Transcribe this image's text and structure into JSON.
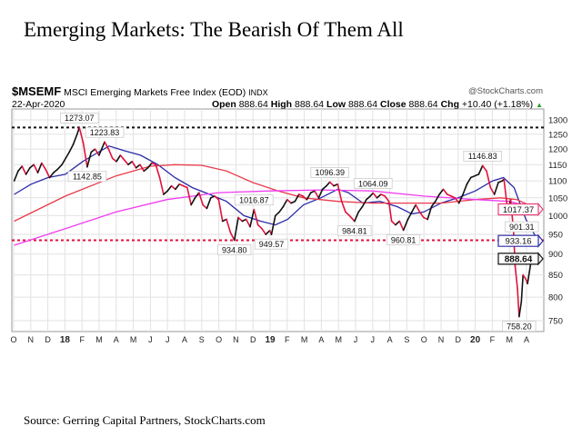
{
  "title": "Emerging Markets:  The Bearish Of Them All",
  "source": "Source: Gerring Capital Partners, StockCharts.com",
  "header": {
    "symbol": "$MSEMF",
    "name": "MSCI Emerging Markets Free Index (EOD)",
    "exchange": "INDX",
    "brand": "@StockCharts.com",
    "date": "22-Apr-2020",
    "open_label": "Open",
    "open": "888.64",
    "high_label": "High",
    "high": "888.64",
    "low_label": "Low",
    "low": "888.64",
    "close_label": "Close",
    "close": "888.64",
    "chg_label": "Chg",
    "chg": "+10.40 (+1.18%)",
    "up_arrow": "▲"
  },
  "chart_data": {
    "type": "line",
    "title": "$MSEMF MSCI Emerging Markets Free Index (EOD)",
    "yscale": "log",
    "ylim": [
      720,
      1320
    ],
    "yticks": [
      750,
      800,
      850,
      900,
      950,
      1000,
      1050,
      1100,
      1150,
      1200,
      1250,
      1300
    ],
    "xstart": "2017-10-01",
    "xend": "2020-04-22",
    "xtick_labels": [
      "O",
      "N",
      "D",
      "18",
      "F",
      "M",
      "A",
      "M",
      "J",
      "J",
      "A",
      "S",
      "O",
      "N",
      "D",
      "19",
      "F",
      "M",
      "A",
      "M",
      "J",
      "J",
      "A",
      "S",
      "O",
      "N",
      "D",
      "20",
      "F",
      "M",
      "A"
    ],
    "grid": true,
    "colors": {
      "up": "#111111",
      "down": "#e0123c",
      "ma_short": "#2a2aa8",
      "ma_mid": "#e83a4a",
      "ma_long": "#f03cf0"
    },
    "price": [
      [
        "2017-10-02",
        1100
      ],
      [
        "2017-10-09",
        1130
      ],
      [
        "2017-10-16",
        1145
      ],
      [
        "2017-10-23",
        1120
      ],
      [
        "2017-10-30",
        1140
      ],
      [
        "2017-11-06",
        1150
      ],
      [
        "2017-11-13",
        1125
      ],
      [
        "2017-11-20",
        1155
      ],
      [
        "2017-11-27",
        1135
      ],
      [
        "2017-12-04",
        1110
      ],
      [
        "2017-12-11",
        1125
      ],
      [
        "2017-12-18",
        1135
      ],
      [
        "2017-12-26",
        1150
      ],
      [
        "2018-01-08",
        1190
      ],
      [
        "2018-01-15",
        1215
      ],
      [
        "2018-01-22",
        1250
      ],
      [
        "2018-01-26",
        1273.07
      ],
      [
        "2018-02-02",
        1220
      ],
      [
        "2018-02-09",
        1142.85
      ],
      [
        "2018-02-16",
        1190
      ],
      [
        "2018-02-23",
        1200
      ],
      [
        "2018-03-02",
        1180
      ],
      [
        "2018-03-12",
        1223.83
      ],
      [
        "2018-03-19",
        1200
      ],
      [
        "2018-03-26",
        1170
      ],
      [
        "2018-04-02",
        1160
      ],
      [
        "2018-04-09",
        1180
      ],
      [
        "2018-04-16",
        1165
      ],
      [
        "2018-04-23",
        1150
      ],
      [
        "2018-04-30",
        1160
      ],
      [
        "2018-05-07",
        1140
      ],
      [
        "2018-05-14",
        1150
      ],
      [
        "2018-05-21",
        1130
      ],
      [
        "2018-05-28",
        1140
      ],
      [
        "2018-06-04",
        1155
      ],
      [
        "2018-06-11",
        1150
      ],
      [
        "2018-06-18",
        1110
      ],
      [
        "2018-06-25",
        1060
      ],
      [
        "2018-07-02",
        1070
      ],
      [
        "2018-07-09",
        1085
      ],
      [
        "2018-07-16",
        1075
      ],
      [
        "2018-07-23",
        1090
      ],
      [
        "2018-07-30",
        1085
      ],
      [
        "2018-08-06",
        1080
      ],
      [
        "2018-08-13",
        1030
      ],
      [
        "2018-08-20",
        1050
      ],
      [
        "2018-08-27",
        1065
      ],
      [
        "2018-09-03",
        1030
      ],
      [
        "2018-09-10",
        1020
      ],
      [
        "2018-09-17",
        1050
      ],
      [
        "2018-09-24",
        1055
      ],
      [
        "2018-10-01",
        1045
      ],
      [
        "2018-10-08",
        985
      ],
      [
        "2018-10-15",
        990
      ],
      [
        "2018-10-22",
        955
      ],
      [
        "2018-10-29",
        934.8
      ],
      [
        "2018-11-05",
        995
      ],
      [
        "2018-11-12",
        985
      ],
      [
        "2018-11-19",
        990
      ],
      [
        "2018-11-26",
        970
      ],
      [
        "2018-12-03",
        1016.87
      ],
      [
        "2018-12-10",
        975
      ],
      [
        "2018-12-17",
        965
      ],
      [
        "2018-12-24",
        950
      ],
      [
        "2018-12-31",
        960
      ],
      [
        "2019-01-03",
        949.57
      ],
      [
        "2019-01-10",
        1000
      ],
      [
        "2019-01-17",
        1010
      ],
      [
        "2019-01-24",
        1025
      ],
      [
        "2019-01-31",
        1045
      ],
      [
        "2019-02-07",
        1035
      ],
      [
        "2019-02-14",
        1040
      ],
      [
        "2019-02-21",
        1060
      ],
      [
        "2019-02-28",
        1055
      ],
      [
        "2019-03-07",
        1045
      ],
      [
        "2019-03-14",
        1065
      ],
      [
        "2019-03-21",
        1070
      ],
      [
        "2019-03-28",
        1050
      ],
      [
        "2019-04-04",
        1075
      ],
      [
        "2019-04-11",
        1085
      ],
      [
        "2019-04-17",
        1096.39
      ],
      [
        "2019-04-24",
        1085
      ],
      [
        "2019-05-01",
        1090
      ],
      [
        "2019-05-08",
        1040
      ],
      [
        "2019-05-15",
        1010
      ],
      [
        "2019-05-22",
        1000
      ],
      [
        "2019-05-31",
        984.81
      ],
      [
        "2019-06-07",
        1010
      ],
      [
        "2019-06-14",
        1025
      ],
      [
        "2019-06-21",
        1045
      ],
      [
        "2019-06-28",
        1055
      ],
      [
        "2019-07-03",
        1064.09
      ],
      [
        "2019-07-10",
        1050
      ],
      [
        "2019-07-17",
        1060
      ],
      [
        "2019-07-24",
        1055
      ],
      [
        "2019-07-31",
        1040
      ],
      [
        "2019-08-05",
        985
      ],
      [
        "2019-08-12",
        975
      ],
      [
        "2019-08-19",
        985
      ],
      [
        "2019-08-26",
        960.81
      ],
      [
        "2019-09-03",
        990
      ],
      [
        "2019-09-10",
        1010
      ],
      [
        "2019-09-17",
        1030
      ],
      [
        "2019-09-24",
        1010
      ],
      [
        "2019-10-01",
        995
      ],
      [
        "2019-10-08",
        990
      ],
      [
        "2019-10-15",
        1025
      ],
      [
        "2019-10-22",
        1040
      ],
      [
        "2019-10-29",
        1060
      ],
      [
        "2019-11-05",
        1075
      ],
      [
        "2019-11-12",
        1060
      ],
      [
        "2019-11-19",
        1055
      ],
      [
        "2019-11-26",
        1050
      ],
      [
        "2019-12-03",
        1035
      ],
      [
        "2019-12-10",
        1060
      ],
      [
        "2019-12-17",
        1090
      ],
      [
        "2019-12-24",
        1110
      ],
      [
        "2019-12-31",
        1115
      ],
      [
        "2020-01-07",
        1120
      ],
      [
        "2020-01-14",
        1146.83
      ],
      [
        "2020-01-21",
        1130
      ],
      [
        "2020-01-28",
        1080
      ],
      [
        "2020-02-04",
        1060
      ],
      [
        "2020-02-11",
        1095
      ],
      [
        "2020-02-18",
        1100
      ],
      [
        "2020-02-21",
        1105
      ],
      [
        "2020-02-28",
        1010
      ],
      [
        "2020-03-04",
        1045
      ],
      [
        "2020-03-09",
        960
      ],
      [
        "2020-03-12",
        870
      ],
      [
        "2020-03-16",
        820
      ],
      [
        "2020-03-19",
        758.2
      ],
      [
        "2020-03-23",
        790
      ],
      [
        "2020-03-26",
        850
      ],
      [
        "2020-03-31",
        840
      ],
      [
        "2020-04-03",
        830
      ],
      [
        "2020-04-09",
        880
      ],
      [
        "2020-04-17",
        901.31
      ],
      [
        "2020-04-22",
        888.64
      ]
    ],
    "moving_averages": [
      {
        "name": "ma_short",
        "points": [
          [
            "2017-10-02",
            1060
          ],
          [
            "2017-11-01",
            1090
          ],
          [
            "2017-12-01",
            1110
          ],
          [
            "2018-01-01",
            1120
          ],
          [
            "2018-02-01",
            1160
          ],
          [
            "2018-03-01",
            1190
          ],
          [
            "2018-03-20",
            1210
          ],
          [
            "2018-04-15",
            1195
          ],
          [
            "2018-05-15",
            1180
          ],
          [
            "2018-06-15",
            1150
          ],
          [
            "2018-07-15",
            1110
          ],
          [
            "2018-08-15",
            1080
          ],
          [
            "2018-09-15",
            1060
          ],
          [
            "2018-10-15",
            1040
          ],
          [
            "2018-11-15",
            1000
          ],
          [
            "2018-12-15",
            985
          ],
          [
            "2019-01-10",
            975
          ],
          [
            "2019-02-01",
            990
          ],
          [
            "2019-03-01",
            1030
          ],
          [
            "2019-04-01",
            1050
          ],
          [
            "2019-05-01",
            1075
          ],
          [
            "2019-05-20",
            1065
          ],
          [
            "2019-06-15",
            1035
          ],
          [
            "2019-07-15",
            1040
          ],
          [
            "2019-08-15",
            1025
          ],
          [
            "2019-09-10",
            1005
          ],
          [
            "2019-10-01",
            1010
          ],
          [
            "2019-11-01",
            1035
          ],
          [
            "2019-12-01",
            1050
          ],
          [
            "2020-01-01",
            1070
          ],
          [
            "2020-02-01",
            1100
          ],
          [
            "2020-02-20",
            1110
          ],
          [
            "2020-03-10",
            1080
          ],
          [
            "2020-03-31",
            990
          ],
          [
            "2020-04-22",
            933.16
          ]
        ]
      },
      {
        "name": "ma_mid",
        "points": [
          [
            "2017-10-02",
            985
          ],
          [
            "2018-01-01",
            1055
          ],
          [
            "2018-04-01",
            1115
          ],
          [
            "2018-06-01",
            1145
          ],
          [
            "2018-07-15",
            1150
          ],
          [
            "2018-09-01",
            1148
          ],
          [
            "2018-10-15",
            1130
          ],
          [
            "2018-12-01",
            1095
          ],
          [
            "2019-01-15",
            1070
          ],
          [
            "2019-03-01",
            1050
          ],
          [
            "2019-05-01",
            1040
          ],
          [
            "2019-07-01",
            1035
          ],
          [
            "2019-09-01",
            1035
          ],
          [
            "2019-11-01",
            1035
          ],
          [
            "2020-01-01",
            1045
          ],
          [
            "2020-02-15",
            1050
          ],
          [
            "2020-03-15",
            1045
          ],
          [
            "2020-04-22",
            1017.37
          ]
        ]
      },
      {
        "name": "ma_long",
        "points": [
          [
            "2017-10-02",
            922
          ],
          [
            "2018-01-01",
            965
          ],
          [
            "2018-04-01",
            1010
          ],
          [
            "2018-07-01",
            1045
          ],
          [
            "2018-10-01",
            1065
          ],
          [
            "2019-01-01",
            1070
          ],
          [
            "2019-04-01",
            1073
          ],
          [
            "2019-07-01",
            1070
          ],
          [
            "2019-10-01",
            1055
          ],
          [
            "2020-01-01",
            1045
          ],
          [
            "2020-03-01",
            1040
          ],
          [
            "2020-04-22",
            1020
          ]
        ]
      }
    ],
    "reference_lines": [
      {
        "value": 1273.07,
        "color": "#111111"
      },
      {
        "value": 934.8,
        "color": "#e0123c"
      }
    ],
    "annotations": [
      {
        "date": "2018-01-26",
        "value": 1273.07,
        "label": "1273.07",
        "pos": "above"
      },
      {
        "date": "2018-03-12",
        "value": 1223.83,
        "label": "1223.83",
        "pos": "above"
      },
      {
        "date": "2018-02-09",
        "value": 1142.85,
        "label": "1142.85",
        "pos": "below"
      },
      {
        "date": "2018-10-29",
        "value": 934.8,
        "label": "934.80",
        "pos": "below"
      },
      {
        "date": "2018-12-03",
        "value": 1016.87,
        "label": "1016.87",
        "pos": "above"
      },
      {
        "date": "2019-01-03",
        "value": 949.57,
        "label": "949.57",
        "pos": "below"
      },
      {
        "date": "2019-04-17",
        "value": 1096.39,
        "label": "1096.39",
        "pos": "above"
      },
      {
        "date": "2019-05-31",
        "value": 984.81,
        "label": "984.81",
        "pos": "below"
      },
      {
        "date": "2019-07-03",
        "value": 1064.09,
        "label": "1064.09",
        "pos": "above"
      },
      {
        "date": "2019-08-26",
        "value": 960.81,
        "label": "960.81",
        "pos": "below"
      },
      {
        "date": "2020-01-14",
        "value": 1146.83,
        "label": "1146.83",
        "pos": "above"
      },
      {
        "date": "2020-03-19",
        "value": 758.2,
        "label": "758.20",
        "pos": "below"
      },
      {
        "date": "2020-04-17",
        "value": 901.31,
        "label": "901.31",
        "pos": "above"
      }
    ],
    "last_value_tags": [
      {
        "value": 1017.37,
        "label": "1017.37",
        "color": "#e8407a"
      },
      {
        "value": 933.16,
        "label": "933.16",
        "color": "#2a2aa8"
      },
      {
        "value": 888.64,
        "label": "888.64",
        "color": "#111111",
        "bold": true
      }
    ]
  }
}
